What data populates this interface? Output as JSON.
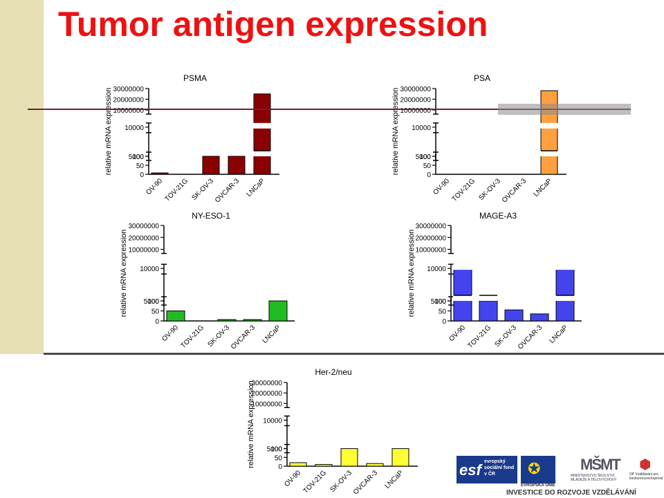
{
  "page": {
    "title": "Tumor antigen expression"
  },
  "footer": {
    "esf": "evropský sociální fond v ČR",
    "eu": "EVROPSKÁ UNIE",
    "msmt": "MINISTERSTVO ŠKOLSTVÍ, MLÁDEŽE A TĚLOVÝCHOVY",
    "op": "OP Vzdělávání pro konkurenceschopnost",
    "slogan": "INVESTICE DO ROZVOJE VZDĚLÁVÁNÍ"
  },
  "colors": {
    "title": "#ee1111",
    "psma": "#8b0000",
    "psa": "#ffa040",
    "nyeso": "#22bb22",
    "mage": "#4444ee",
    "her2": "#ffff33",
    "guide_line": "#6b1f3a"
  },
  "chart_data": [
    {
      "type": "bar",
      "title": "PSMA",
      "ylabel": "relative mRNA expression",
      "categories": [
        "OV-90",
        "TOV-21G",
        "SK-OV-3",
        "OVCAR-3",
        "LNCaP"
      ],
      "values": [
        2,
        0,
        100,
        100,
        25000000
      ],
      "yticks": [
        "0",
        "50",
        "100",
        "5000",
        "10000",
        "10000000",
        "20000000",
        "30000000"
      ],
      "scale": "broken"
    },
    {
      "type": "bar",
      "title": "PSA",
      "ylabel": "relative mRNA expression",
      "categories": [
        "OV-90",
        "TOV-21G",
        "SK-OV-3",
        "OVCAR-3",
        "LNCaP"
      ],
      "values": [
        0,
        0,
        0,
        0,
        28000000
      ],
      "yticks": [
        "0",
        "50",
        "100",
        "5000",
        "10000",
        "10000000",
        "20000000",
        "30000000"
      ],
      "scale": "broken"
    },
    {
      "type": "bar",
      "title": "NY-ESO-1",
      "ylabel": "relative mRNA expression",
      "categories": [
        "OV-90",
        "TOV-21G",
        "SK-OV-3",
        "OVCAR-3",
        "LNCaP"
      ],
      "values": [
        50,
        0,
        5,
        1,
        100
      ],
      "yticks": [
        "0",
        "50",
        "100",
        "5000",
        "10000",
        "10000000",
        "20000000",
        "30000000"
      ],
      "scale": "broken"
    },
    {
      "type": "bar",
      "title": "MAGE-A3",
      "ylabel": "relative mRNA expression",
      "categories": [
        "OV-90",
        "TOV-21G",
        "SK-OV-3",
        "OVCAR-3",
        "LNCaP"
      ],
      "values": [
        12000,
        2000,
        55,
        35,
        13000
      ],
      "yticks": [
        "0",
        "50",
        "100",
        "5000",
        "10000",
        "10000000",
        "20000000",
        "30000000"
      ],
      "scale": "broken"
    },
    {
      "type": "bar",
      "title": "Her-2/neu",
      "ylabel": "relative mRNA expression",
      "categories": [
        "OV-90",
        "TOV-21G",
        "SK-OV-3",
        "OVCAR-3",
        "LNCaP"
      ],
      "values": [
        20,
        10,
        100,
        15,
        100
      ],
      "yticks": [
        "0",
        "50",
        "100",
        "5000",
        "10000",
        "10000000",
        "20000000",
        "30000000"
      ],
      "scale": "broken"
    }
  ]
}
